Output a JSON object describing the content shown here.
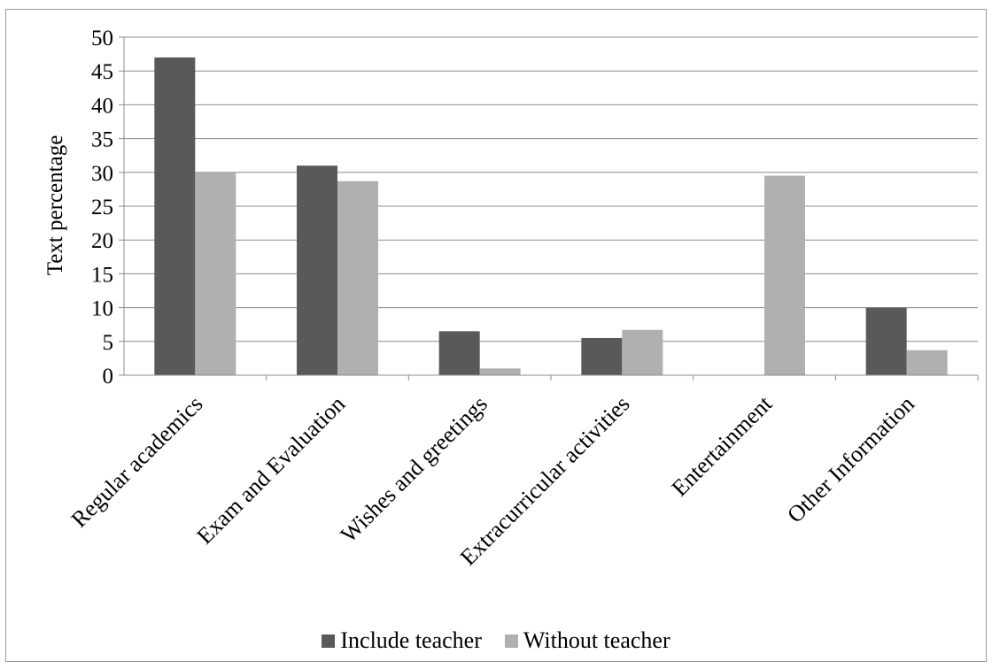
{
  "chart_data": {
    "type": "bar",
    "title": "",
    "xlabel": "",
    "ylabel": "Text percentage",
    "ylim": [
      0,
      50
    ],
    "yticks": [
      0,
      5,
      10,
      15,
      20,
      25,
      30,
      35,
      40,
      45,
      50
    ],
    "grid": "horizontal",
    "legend_position": "bottom",
    "categories": [
      "Regular academics",
      "Exam and Evaluation",
      "Wishes and greetings",
      "Extracurricular activities",
      "Entertainment",
      "Other Information"
    ],
    "series": [
      {
        "name": "Include teacher",
        "color": "#595959",
        "values": [
          47,
          31,
          6.5,
          5.5,
          0,
          10
        ]
      },
      {
        "name": "Without teacher",
        "color": "#b0b0b0",
        "values": [
          30,
          28.7,
          1,
          6.7,
          29.5,
          3.7
        ]
      }
    ]
  }
}
